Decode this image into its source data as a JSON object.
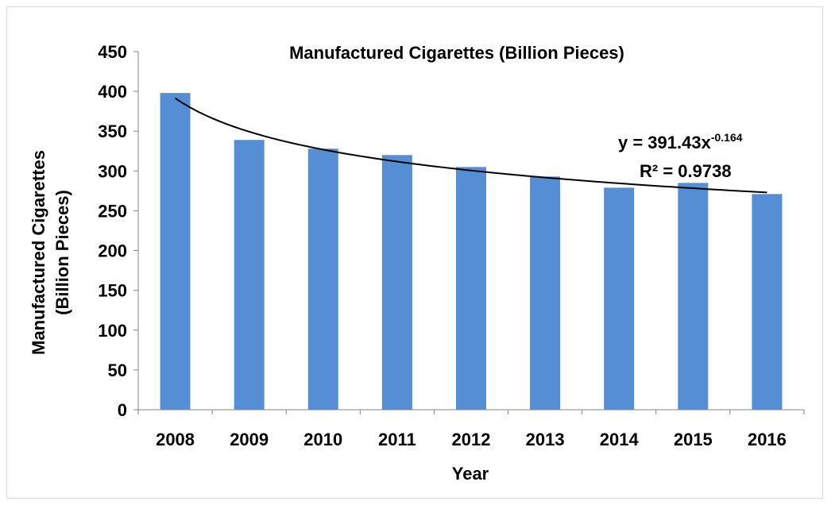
{
  "chart_data": {
    "type": "bar",
    "title": "Manufactured Cigarettes (Billion Pieces)",
    "xlabel": "Year",
    "ylabel_line1": "Manufactured Cigarettes",
    "ylabel_line2": "(Billion Pieces)",
    "categories": [
      "2008",
      "2009",
      "2010",
      "2011",
      "2012",
      "2013",
      "2014",
      "2015",
      "2016"
    ],
    "values": [
      398,
      339,
      328,
      320,
      305,
      293,
      279,
      285,
      271
    ],
    "ylim": [
      0,
      450
    ],
    "yticks": [
      "0",
      "50",
      "100",
      "150",
      "200",
      "250",
      "300",
      "350",
      "400",
      "450"
    ],
    "bar_color": "#558ED5",
    "grid": false,
    "legend": "none",
    "trendline": {
      "type": "power",
      "coefficient": 391.43,
      "exponent": -0.164,
      "equation_base": "y = 391.43x",
      "equation_exponent": "-0.164",
      "r_squared_label": "R² = 0.9738",
      "color": "#000000"
    }
  }
}
